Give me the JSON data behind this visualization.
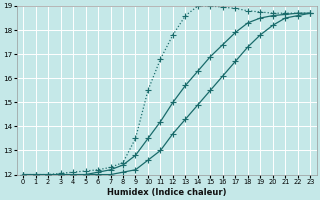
{
  "xlabel": "Humidex (Indice chaleur)",
  "xlim": [
    -0.5,
    23.5
  ],
  "ylim": [
    12,
    19
  ],
  "xticks": [
    0,
    1,
    2,
    3,
    4,
    5,
    6,
    7,
    8,
    9,
    10,
    11,
    12,
    13,
    14,
    15,
    16,
    17,
    18,
    19,
    20,
    21,
    22,
    23
  ],
  "yticks": [
    12,
    13,
    14,
    15,
    16,
    17,
    18,
    19
  ],
  "bg_color": "#c5e8e8",
  "grid_color": "#ffffff",
  "line_color": "#1a6b6b",
  "curve1_x": [
    0,
    1,
    2,
    3,
    4,
    5,
    6,
    7,
    8,
    9,
    10,
    11,
    12,
    13,
    14,
    15,
    16,
    17,
    18,
    19,
    20,
    21,
    22,
    23
  ],
  "curve1_y": [
    12,
    12,
    12,
    12.05,
    12.1,
    12.15,
    12.2,
    12.3,
    12.5,
    13.5,
    15.5,
    16.8,
    17.8,
    18.6,
    19.0,
    19.0,
    18.95,
    18.9,
    18.8,
    18.75,
    18.7,
    18.7,
    18.7,
    18.7
  ],
  "curve2_x": [
    0,
    1,
    2,
    3,
    4,
    5,
    6,
    7,
    8,
    9,
    10,
    11,
    12,
    13,
    14,
    15,
    16,
    17,
    18,
    19,
    20,
    21,
    22,
    23
  ],
  "curve2_y": [
    12,
    12,
    12,
    12,
    12,
    12,
    12.1,
    12.2,
    12.4,
    12.8,
    13.5,
    14.2,
    15.0,
    15.7,
    16.3,
    16.9,
    17.4,
    17.9,
    18.3,
    18.5,
    18.6,
    18.65,
    18.7,
    18.7
  ],
  "curve3_x": [
    0,
    1,
    2,
    3,
    4,
    5,
    6,
    7,
    8,
    9,
    10,
    11,
    12,
    13,
    14,
    15,
    16,
    17,
    18,
    19,
    20,
    21,
    22,
    23
  ],
  "curve3_y": [
    12,
    12,
    12,
    12,
    12,
    12,
    12,
    12,
    12.1,
    12.2,
    12.6,
    13.0,
    13.7,
    14.3,
    14.9,
    15.5,
    16.1,
    16.7,
    17.3,
    17.8,
    18.2,
    18.5,
    18.6,
    18.7
  ]
}
